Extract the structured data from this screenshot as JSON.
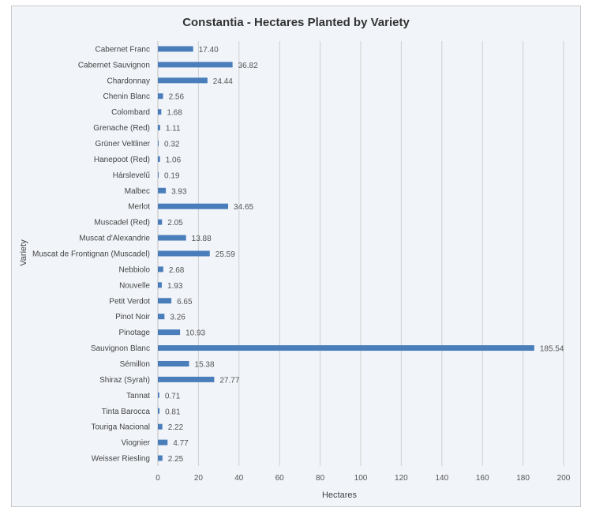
{
  "chart_data": {
    "type": "bar",
    "orientation": "horizontal",
    "title": "Constantia - Hectares Planted by Variety",
    "xlabel": "Hectares",
    "ylabel": "Variety",
    "xlim": [
      0,
      200
    ],
    "x_ticks": [
      0,
      20,
      40,
      60,
      80,
      100,
      120,
      140,
      160,
      180,
      200
    ],
    "grid": true,
    "categories": [
      "Cabernet Franc",
      "Cabernet Sauvignon",
      "Chardonnay",
      "Chenin Blanc",
      "Colombard",
      "Grenache (Red)",
      "Grüner Veltliner",
      "Hanepoot (Red)",
      "Hárslevelű",
      "Malbec",
      "Merlot",
      "Muscadel (Red)",
      "Muscat d'Alexandrie",
      "Muscat de Frontignan (Muscadel)",
      "Nebbiolo",
      "Nouvelle",
      "Petit Verdot",
      "Pinot Noir",
      "Pinotage",
      "Sauvignon Blanc",
      "Sémillon",
      "Shiraz (Syrah)",
      "Tannat",
      "Tinta Barocca",
      "Touriga Nacional",
      "Viognier",
      "Weisser Riesling"
    ],
    "values": [
      17.4,
      36.82,
      24.44,
      2.56,
      1.68,
      1.11,
      0.32,
      1.06,
      0.19,
      3.93,
      34.65,
      2.05,
      13.88,
      25.59,
      2.68,
      1.93,
      6.65,
      3.26,
      10.93,
      185.54,
      15.38,
      27.77,
      0.71,
      0.81,
      2.22,
      4.77,
      2.25
    ],
    "value_labels": [
      "17.40",
      "36.82",
      "24.44",
      "2.56",
      "1.68",
      "1.11",
      "0.32",
      "1.06",
      "0.19",
      "3.93",
      "34.65",
      "2.05",
      "13.88",
      "25.59",
      "2.68",
      "1.93",
      "6.65",
      "3.26",
      "10.93",
      "185.54",
      "15.38",
      "27.77",
      "0.71",
      "0.81",
      "2.22",
      "4.77",
      "2.25"
    ],
    "bar_color": "#4a7ebb"
  }
}
